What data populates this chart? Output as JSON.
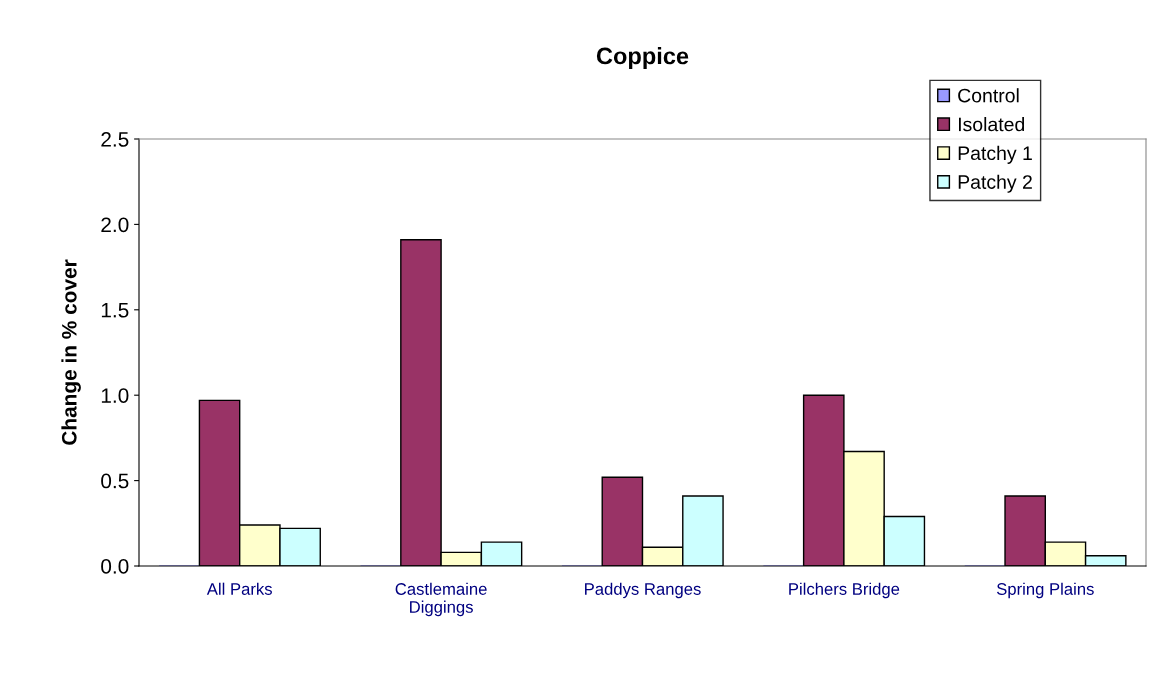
{
  "chart_data": {
    "type": "bar",
    "title": "Coppice",
    "ylabel": "Change in % cover",
    "categories": [
      "All Parks",
      "Castlemaine\nDiggings",
      "Paddys Ranges",
      "Pilchers Bridge",
      "Spring Plains"
    ],
    "series": [
      {
        "name": "Control",
        "color": "#9999ff",
        "values": [
          0,
          0,
          0,
          0,
          0
        ]
      },
      {
        "name": "Isolated",
        "color": "#993366",
        "values": [
          0.97,
          1.91,
          0.52,
          1.0,
          0.41
        ]
      },
      {
        "name": "Patchy 1",
        "color": "#ffffcc",
        "values": [
          0.24,
          0.08,
          0.11,
          0.67,
          0.14
        ]
      },
      {
        "name": "Patchy 2",
        "color": "#ccffff",
        "values": [
          0.22,
          0.14,
          0.41,
          0.29,
          0.06
        ]
      }
    ],
    "ylim": [
      0,
      2.5
    ],
    "yticks": [
      {
        "value": 0,
        "label": "0.0"
      },
      {
        "value": 0.5,
        "label": "0.5"
      },
      {
        "value": 1,
        "label": "1.0"
      },
      {
        "value": 1.5,
        "label": "1.5"
      },
      {
        "value": 2,
        "label": "2.0"
      },
      {
        "value": 2.5,
        "label": "2.5"
      }
    ],
    "grid": false,
    "legend": "top right"
  }
}
